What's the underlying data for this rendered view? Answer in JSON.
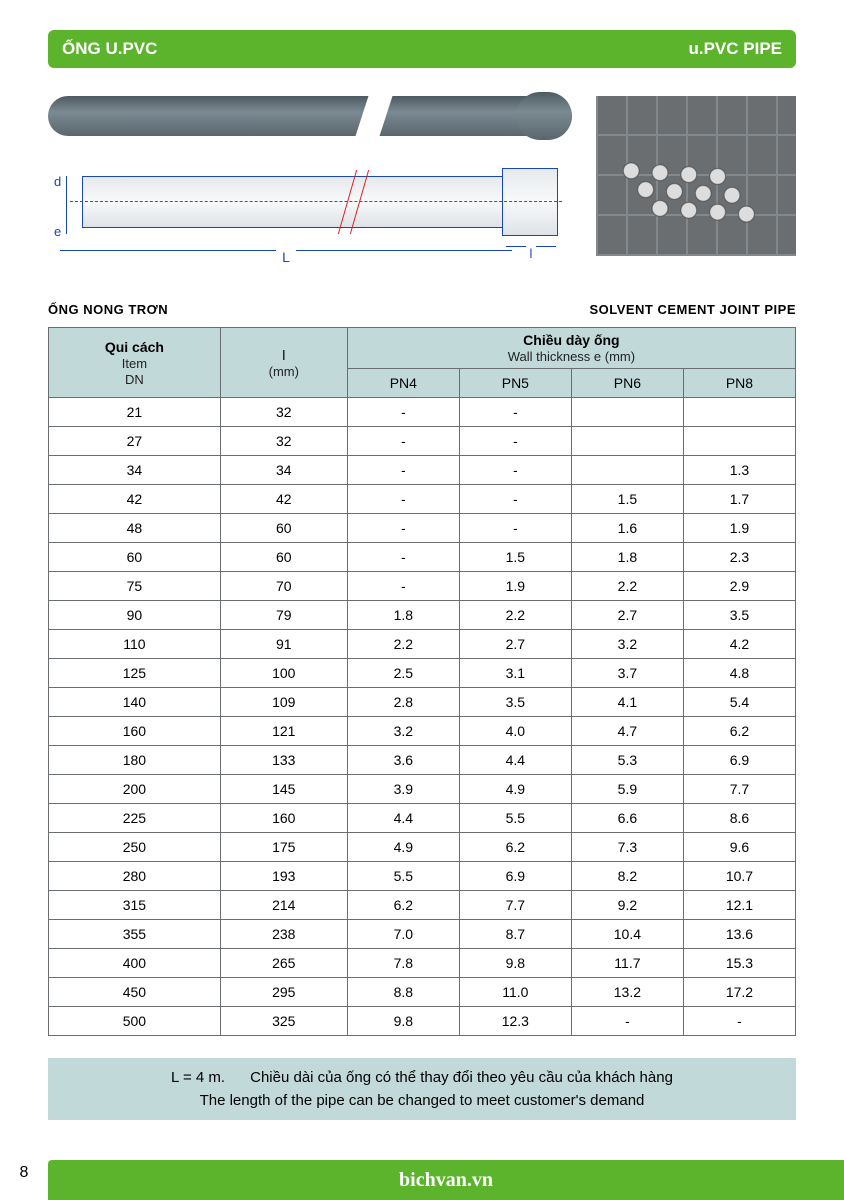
{
  "header": {
    "left": "ỐNG u.PVC",
    "right": "u.PVC  PIPE"
  },
  "diagram": {
    "d": "d",
    "e": "e",
    "L": "L",
    "l": "l"
  },
  "subhead": {
    "left": "ỐNG NONG TRƠN",
    "right": "SOLVENT CEMENT JOINT PIPE"
  },
  "table": {
    "item_header_bold": "Qui cách",
    "item_header_sub1": "Item",
    "item_header_sub2": "DN",
    "l_header_top": "l",
    "l_header_sub": "(mm)",
    "thick_header_bold": "Chiều dày ống",
    "thick_header_sub": "Wall thickness  e (mm)",
    "pn_cols": [
      "PN4",
      "PN5",
      "PN6",
      "PN8"
    ],
    "rows": [
      {
        "dn": "21",
        "l": "32",
        "pn": [
          "-",
          "-",
          "",
          ""
        ]
      },
      {
        "dn": "27",
        "l": "32",
        "pn": [
          "-",
          "-",
          "",
          ""
        ]
      },
      {
        "dn": "34",
        "l": "34",
        "pn": [
          "-",
          "-",
          "",
          "1.3"
        ]
      },
      {
        "dn": "42",
        "l": "42",
        "pn": [
          "-",
          "-",
          "1.5",
          "1.7"
        ]
      },
      {
        "dn": "48",
        "l": "60",
        "pn": [
          "-",
          "-",
          "1.6",
          "1.9"
        ]
      },
      {
        "dn": "60",
        "l": "60",
        "pn": [
          "-",
          "1.5",
          "1.8",
          "2.3"
        ]
      },
      {
        "dn": "75",
        "l": "70",
        "pn": [
          "-",
          "1.9",
          "2.2",
          "2.9"
        ]
      },
      {
        "dn": "90",
        "l": "79",
        "pn": [
          "1.8",
          "2.2",
          "2.7",
          "3.5"
        ]
      },
      {
        "dn": "110",
        "l": "91",
        "pn": [
          "2.2",
          "2.7",
          "3.2",
          "4.2"
        ]
      },
      {
        "dn": "125",
        "l": "100",
        "pn": [
          "2.5",
          "3.1",
          "3.7",
          "4.8"
        ]
      },
      {
        "dn": "140",
        "l": "109",
        "pn": [
          "2.8",
          "3.5",
          "4.1",
          "5.4"
        ]
      },
      {
        "dn": "160",
        "l": "121",
        "pn": [
          "3.2",
          "4.0",
          "4.7",
          "6.2"
        ]
      },
      {
        "dn": "180",
        "l": "133",
        "pn": [
          "3.6",
          "4.4",
          "5.3",
          "6.9"
        ]
      },
      {
        "dn": "200",
        "l": "145",
        "pn": [
          "3.9",
          "4.9",
          "5.9",
          "7.7"
        ]
      },
      {
        "dn": "225",
        "l": "160",
        "pn": [
          "4.4",
          "5.5",
          "6.6",
          "8.6"
        ]
      },
      {
        "dn": "250",
        "l": "175",
        "pn": [
          "4.9",
          "6.2",
          "7.3",
          "9.6"
        ]
      },
      {
        "dn": "280",
        "l": "193",
        "pn": [
          "5.5",
          "6.9",
          "8.2",
          "10.7"
        ]
      },
      {
        "dn": "315",
        "l": "214",
        "pn": [
          "6.2",
          "7.7",
          "9.2",
          "12.1"
        ]
      },
      {
        "dn": "355",
        "l": "238",
        "pn": [
          "7.0",
          "8.7",
          "10.4",
          "13.6"
        ]
      },
      {
        "dn": "400",
        "l": "265",
        "pn": [
          "7.8",
          "9.8",
          "11.7",
          "15.3"
        ]
      },
      {
        "dn": "450",
        "l": "295",
        "pn": [
          "8.8",
          "11.0",
          "13.2",
          "17.2"
        ]
      },
      {
        "dn": "500",
        "l": "325",
        "pn": [
          "9.8",
          "12.3",
          "-",
          "-"
        ]
      }
    ]
  },
  "note": {
    "line1_prefix": "L = 4 m.",
    "line1": "Chiều dài của ống có thể thay đổi theo yêu cầu của khách hàng",
    "line2": "The length of the pipe can be changed to meet customer's demand"
  },
  "page_number": "8",
  "footer_url": "bichvan.vn",
  "colors": {
    "green": "#5cb42c",
    "teal_bg": "#c2d9d9",
    "border": "#6a6e71",
    "dim_blue": "#1946b8",
    "dim_red": "#e01a1a"
  }
}
